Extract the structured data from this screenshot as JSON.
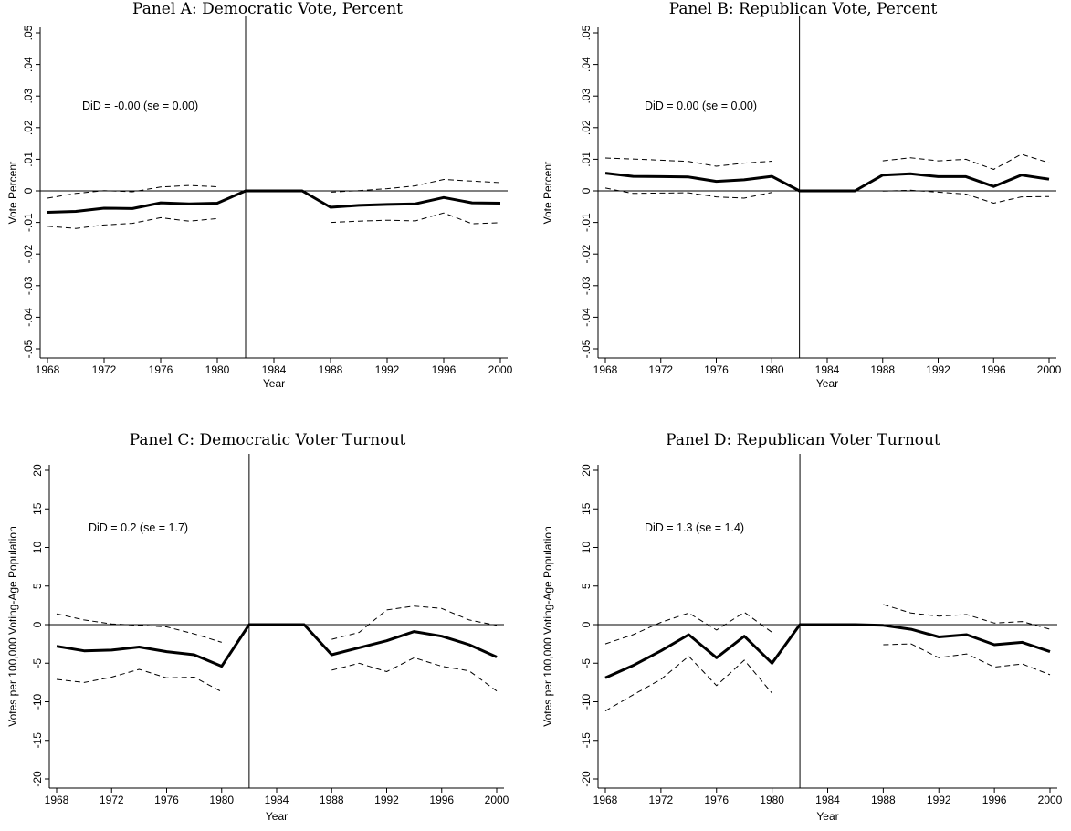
{
  "chart_data": [
    {
      "type": "line",
      "title": "Panel A: Democratic Vote, Percent",
      "xlabel": "Year",
      "ylabel": "Vote Percent",
      "xlim": [
        1968,
        2000
      ],
      "ylim": [
        -0.05,
        0.05
      ],
      "xticks": [
        "1968",
        "1972",
        "1976",
        "1980",
        "1984",
        "1988",
        "1992",
        "1996",
        "2000"
      ],
      "yticks": [
        "-.05",
        "-.04",
        "-.03",
        "-.02",
        "-.01",
        "0",
        ".01",
        ".02",
        ".03",
        ".04",
        ".05"
      ],
      "reference_x": 1982,
      "annotation": "DiD = -0.00 (se = 0.00)",
      "x": [
        1968,
        1970,
        1972,
        1974,
        1976,
        1978,
        1980,
        1982,
        1984,
        1986,
        1988,
        1990,
        1992,
        1994,
        1996,
        1998,
        2000
      ],
      "series": [
        {
          "style": "estimate",
          "values": [
            -0.0068,
            -0.0065,
            -0.0055,
            -0.0056,
            -0.0038,
            -0.0041,
            -0.0039,
            0,
            0,
            0,
            -0.0052,
            -0.0046,
            -0.0043,
            -0.0041,
            -0.0021,
            -0.0038,
            -0.0039
          ]
        },
        {
          "style": "upper",
          "values": [
            -0.0023,
            -0.0008,
            0.0001,
            -0.0003,
            0.0012,
            0.0017,
            0.0013,
            null,
            null,
            null,
            -0.0004,
            0.0001,
            0.0007,
            0.0016,
            0.0036,
            0.0031,
            0.0026
          ]
        },
        {
          "style": "lower",
          "values": [
            -0.0112,
            -0.0119,
            -0.0108,
            -0.0103,
            -0.0085,
            -0.0096,
            -0.0088,
            null,
            null,
            null,
            -0.01,
            -0.0096,
            -0.0093,
            -0.0095,
            -0.007,
            -0.0104,
            -0.0101
          ]
        }
      ]
    },
    {
      "type": "line",
      "title": "Panel B: Republican Vote, Percent",
      "xlabel": "Year",
      "ylabel": "Vote Percent",
      "xlim": [
        1968,
        2000
      ],
      "ylim": [
        -0.05,
        0.05
      ],
      "xticks": [
        "1968",
        "1972",
        "1976",
        "1980",
        "1984",
        "1988",
        "1992",
        "1996",
        "2000"
      ],
      "yticks": [
        "-.05",
        "-.04",
        "-.03",
        "-.02",
        "-.01",
        "0",
        ".01",
        ".02",
        ".03",
        ".04",
        ".05"
      ],
      "reference_x": 1982,
      "annotation": "DiD = 0.00 (se = 0.00)",
      "x": [
        1968,
        1970,
        1972,
        1974,
        1976,
        1978,
        1980,
        1982,
        1984,
        1986,
        1988,
        1990,
        1992,
        1994,
        1996,
        1998,
        2000
      ],
      "series": [
        {
          "style": "estimate",
          "values": [
            0.0056,
            0.0046,
            0.0045,
            0.0044,
            0.003,
            0.0035,
            0.0046,
            0,
            0,
            0,
            0.005,
            0.0054,
            0.0045,
            0.0045,
            0.0014,
            0.005,
            0.0037
          ]
        },
        {
          "style": "upper",
          "values": [
            0.0104,
            0.0101,
            0.0097,
            0.0093,
            0.0078,
            0.0088,
            0.0094,
            null,
            null,
            null,
            0.0095,
            0.0105,
            0.0095,
            0.01,
            0.0068,
            0.0116,
            0.0089
          ]
        },
        {
          "style": "lower",
          "values": [
            0.0009,
            -0.0008,
            -0.0007,
            -0.0006,
            -0.0019,
            -0.0023,
            -0.0005,
            null,
            null,
            null,
            -0.0001,
            0.0002,
            -0.0004,
            -0.001,
            -0.0039,
            -0.0019,
            -0.0018
          ]
        }
      ]
    },
    {
      "type": "line",
      "title": "Panel C: Democratic Voter Turnout",
      "xlabel": "Year",
      "ylabel": "Votes per 100,000 Voting-Age Population",
      "xlim": [
        1968,
        2000
      ],
      "ylim": [
        -20,
        20
      ],
      "xticks": [
        "1968",
        "1972",
        "1976",
        "1980",
        "1984",
        "1988",
        "1992",
        "1996",
        "2000"
      ],
      "yticks": [
        "-20",
        "-15",
        "-10",
        "-5",
        "0",
        "5",
        "10",
        "15",
        "20"
      ],
      "reference_x": 1982,
      "annotation": "DiD = 0.2 (se = 1.7)",
      "x": [
        1968,
        1970,
        1972,
        1974,
        1976,
        1978,
        1980,
        1982,
        1984,
        1986,
        1988,
        1990,
        1992,
        1994,
        1996,
        1998,
        2000
      ],
      "series": [
        {
          "style": "estimate",
          "values": [
            -2.8,
            -3.4,
            -3.3,
            -2.9,
            -3.5,
            -3.9,
            -5.4,
            0,
            0,
            0,
            -3.9,
            -3.0,
            -2.1,
            -0.9,
            -1.5,
            -2.6,
            -4.2
          ]
        },
        {
          "style": "upper",
          "values": [
            1.4,
            0.6,
            0.1,
            -0.1,
            -0.3,
            -1.2,
            -2.3,
            null,
            null,
            null,
            -1.9,
            -1.0,
            1.9,
            2.4,
            2.1,
            0.6,
            -0.1
          ]
        },
        {
          "style": "lower",
          "values": [
            -7.1,
            -7.5,
            -6.8,
            -5.8,
            -6.9,
            -6.8,
            -8.7,
            null,
            null,
            null,
            -5.9,
            -5.0,
            -6.1,
            -4.3,
            -5.4,
            -6.0,
            -8.6
          ]
        }
      ]
    },
    {
      "type": "line",
      "title": "Panel D: Republican Voter Turnout",
      "xlabel": "Year",
      "ylabel": "Votes per 100,000 Voting-Age Population",
      "xlim": [
        1968,
        2000
      ],
      "ylim": [
        -20,
        20
      ],
      "xticks": [
        "1968",
        "1972",
        "1976",
        "1980",
        "1984",
        "1988",
        "1992",
        "1996",
        "2000"
      ],
      "yticks": [
        "-20",
        "-15",
        "-10",
        "-5",
        "0",
        "5",
        "10",
        "15",
        "20"
      ],
      "reference_x": 1982,
      "annotation": "DiD = 1.3 (se = 1.4)",
      "x": [
        1968,
        1970,
        1972,
        1974,
        1976,
        1978,
        1980,
        1982,
        1984,
        1986,
        1988,
        1990,
        1992,
        1994,
        1996,
        1998,
        2000
      ],
      "series": [
        {
          "style": "estimate",
          "values": [
            -6.9,
            -5.3,
            -3.4,
            -1.3,
            -4.3,
            -1.5,
            -5.0,
            0,
            0,
            0,
            -0.1,
            -0.6,
            -1.6,
            -1.3,
            -2.6,
            -2.3,
            -3.5
          ]
        },
        {
          "style": "upper",
          "values": [
            -2.5,
            -1.3,
            0.3,
            1.5,
            -0.7,
            1.6,
            -1.0,
            null,
            null,
            null,
            2.6,
            1.5,
            1.1,
            1.3,
            0.2,
            0.4,
            -0.6
          ]
        },
        {
          "style": "lower",
          "values": [
            -11.2,
            -9.1,
            -7.1,
            -4.1,
            -7.9,
            -4.6,
            -8.9,
            null,
            null,
            null,
            -2.6,
            -2.5,
            -4.3,
            -3.8,
            -5.5,
            -5.1,
            -6.5
          ]
        }
      ]
    }
  ]
}
